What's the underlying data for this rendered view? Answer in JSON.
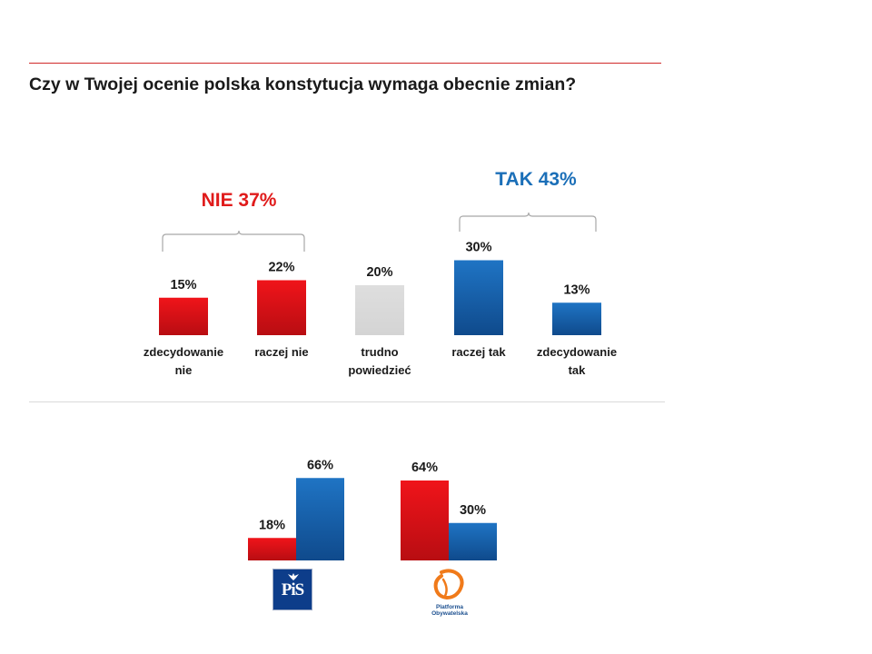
{
  "question": "Czy w Twojej ocenie polska konstytucja wymaga obecnie zmian?",
  "groups": {
    "nie": {
      "label": "NIE 37%",
      "color": "#e01b1b"
    },
    "tak": {
      "label": "TAK 43%",
      "color": "#1b6fb8"
    }
  },
  "colors": {
    "red": "#e0141c",
    "blue": "#1865b4",
    "gray": "#d9d9d9"
  },
  "chart_data": [
    {
      "type": "bar",
      "categories": [
        "zdecydowanie nie",
        "raczej nie",
        "trudno powiedzieć",
        "raczej tak",
        "zdecydowanie tak"
      ],
      "category_lines": [
        [
          "zdecydowanie",
          "nie"
        ],
        [
          "raczej nie"
        ],
        [
          "trudno",
          "powiedzieć"
        ],
        [
          "raczej tak"
        ],
        [
          "zdecydowanie",
          "tak"
        ]
      ],
      "values": [
        15,
        22,
        20,
        30,
        13
      ],
      "value_labels": [
        "15%",
        "22%",
        "20%",
        "30%",
        "13%"
      ],
      "bar_colors": [
        "red",
        "red",
        "gray",
        "blue",
        "blue"
      ],
      "unit": "%"
    },
    {
      "type": "bar",
      "categories": [
        "PiS",
        "Platforma Obywatelska"
      ],
      "series": [
        {
          "values": [
            18,
            64
          ],
          "value_labels": [
            "18%",
            "64%"
          ],
          "color": "red"
        },
        {
          "values": [
            66,
            30
          ],
          "value_labels": [
            "66%",
            "30%"
          ],
          "color": "blue"
        }
      ],
      "unit": "%"
    }
  ],
  "logos": {
    "pis": {
      "text": "PiS"
    },
    "po": {
      "text_line1": "Platforma",
      "text_line2": "Obywatelska"
    }
  }
}
